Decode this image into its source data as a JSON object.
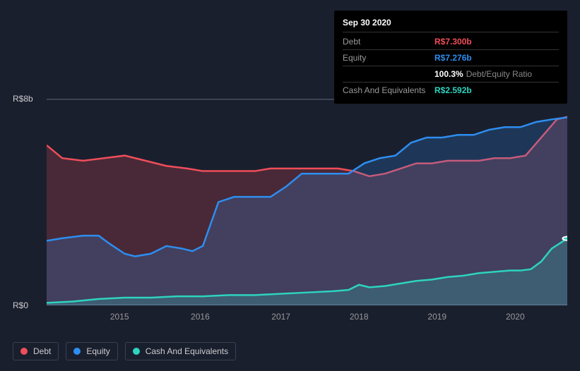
{
  "tooltip": {
    "date": "Sep 30 2020",
    "rows": [
      {
        "label": "Debt",
        "value": "R$7.300b",
        "cls": "debt"
      },
      {
        "label": "Equity",
        "value": "R$7.276b",
        "cls": "equity"
      },
      {
        "label": "",
        "value": "100.3%",
        "extra": "Debt/Equity Ratio",
        "cls": "ratio"
      },
      {
        "label": "Cash And Equivalents",
        "value": "R$2.592b",
        "cls": "cash"
      }
    ]
  },
  "yticks": [
    {
      "label": "R$8b",
      "v": 8
    },
    {
      "label": "R$0",
      "v": 0
    }
  ],
  "xticks": [
    {
      "label": "2015",
      "x": 0.14
    },
    {
      "label": "2016",
      "x": 0.295
    },
    {
      "label": "2017",
      "x": 0.45
    },
    {
      "label": "2018",
      "x": 0.6
    },
    {
      "label": "2019",
      "x": 0.75
    },
    {
      "label": "2020",
      "x": 0.9
    }
  ],
  "series": {
    "debt": {
      "name": "Debt",
      "color": "#f04e5a",
      "fill": "rgba(240,78,90,0.22)",
      "points": [
        [
          0.0,
          6.2
        ],
        [
          0.03,
          5.7
        ],
        [
          0.07,
          5.6
        ],
        [
          0.11,
          5.7
        ],
        [
          0.15,
          5.8
        ],
        [
          0.19,
          5.6
        ],
        [
          0.23,
          5.4
        ],
        [
          0.27,
          5.3
        ],
        [
          0.3,
          5.2
        ],
        [
          0.33,
          5.2
        ],
        [
          0.37,
          5.2
        ],
        [
          0.4,
          5.2
        ],
        [
          0.43,
          5.3
        ],
        [
          0.47,
          5.3
        ],
        [
          0.5,
          5.3
        ],
        [
          0.53,
          5.3
        ],
        [
          0.56,
          5.3
        ],
        [
          0.59,
          5.2
        ],
        [
          0.62,
          5.0
        ],
        [
          0.65,
          5.1
        ],
        [
          0.68,
          5.3
        ],
        [
          0.71,
          5.5
        ],
        [
          0.74,
          5.5
        ],
        [
          0.77,
          5.6
        ],
        [
          0.8,
          5.6
        ],
        [
          0.83,
          5.6
        ],
        [
          0.86,
          5.7
        ],
        [
          0.89,
          5.7
        ],
        [
          0.92,
          5.8
        ],
        [
          0.95,
          6.5
        ],
        [
          0.98,
          7.2
        ],
        [
          1.0,
          7.3
        ]
      ]
    },
    "equity": {
      "name": "Equity",
      "color": "#2d8ef0",
      "fill": "rgba(45,142,240,0.22)",
      "points": [
        [
          0.0,
          2.5
        ],
        [
          0.03,
          2.6
        ],
        [
          0.07,
          2.7
        ],
        [
          0.1,
          2.7
        ],
        [
          0.12,
          2.4
        ],
        [
          0.15,
          2.0
        ],
        [
          0.17,
          1.9
        ],
        [
          0.2,
          2.0
        ],
        [
          0.23,
          2.3
        ],
        [
          0.26,
          2.2
        ],
        [
          0.28,
          2.1
        ],
        [
          0.3,
          2.3
        ],
        [
          0.33,
          4.0
        ],
        [
          0.36,
          4.2
        ],
        [
          0.4,
          4.2
        ],
        [
          0.43,
          4.2
        ],
        [
          0.46,
          4.6
        ],
        [
          0.49,
          5.1
        ],
        [
          0.52,
          5.1
        ],
        [
          0.55,
          5.1
        ],
        [
          0.58,
          5.1
        ],
        [
          0.61,
          5.5
        ],
        [
          0.64,
          5.7
        ],
        [
          0.67,
          5.8
        ],
        [
          0.7,
          6.3
        ],
        [
          0.73,
          6.5
        ],
        [
          0.76,
          6.5
        ],
        [
          0.79,
          6.6
        ],
        [
          0.82,
          6.6
        ],
        [
          0.85,
          6.8
        ],
        [
          0.88,
          6.9
        ],
        [
          0.91,
          6.9
        ],
        [
          0.94,
          7.1
        ],
        [
          0.97,
          7.2
        ],
        [
          1.0,
          7.28
        ]
      ]
    },
    "cash": {
      "name": "Cash And Equivalents",
      "color": "#2dd4bf",
      "fill": "rgba(45,212,191,0.20)",
      "points": [
        [
          0.0,
          0.1
        ],
        [
          0.05,
          0.15
        ],
        [
          0.1,
          0.25
        ],
        [
          0.15,
          0.3
        ],
        [
          0.2,
          0.3
        ],
        [
          0.25,
          0.35
        ],
        [
          0.3,
          0.35
        ],
        [
          0.35,
          0.4
        ],
        [
          0.4,
          0.4
        ],
        [
          0.45,
          0.45
        ],
        [
          0.5,
          0.5
        ],
        [
          0.55,
          0.55
        ],
        [
          0.58,
          0.6
        ],
        [
          0.6,
          0.8
        ],
        [
          0.62,
          0.7
        ],
        [
          0.65,
          0.75
        ],
        [
          0.68,
          0.85
        ],
        [
          0.71,
          0.95
        ],
        [
          0.74,
          1.0
        ],
        [
          0.77,
          1.1
        ],
        [
          0.8,
          1.15
        ],
        [
          0.83,
          1.25
        ],
        [
          0.86,
          1.3
        ],
        [
          0.89,
          1.35
        ],
        [
          0.91,
          1.35
        ],
        [
          0.93,
          1.4
        ],
        [
          0.95,
          1.7
        ],
        [
          0.97,
          2.2
        ],
        [
          1.0,
          2.59
        ]
      ]
    }
  },
  "legend": [
    {
      "label": "Debt",
      "color": "#f04e5a"
    },
    {
      "label": "Equity",
      "color": "#2d8ef0"
    },
    {
      "label": "Cash And Equivalents",
      "color": "#2dd4bf"
    }
  ],
  "chart": {
    "ymin": 0,
    "ymax": 8,
    "background": "#1a1f2e",
    "gridline_color": "#4a5060",
    "marker": {
      "x": 1.0,
      "cash_y": 2.59
    }
  }
}
